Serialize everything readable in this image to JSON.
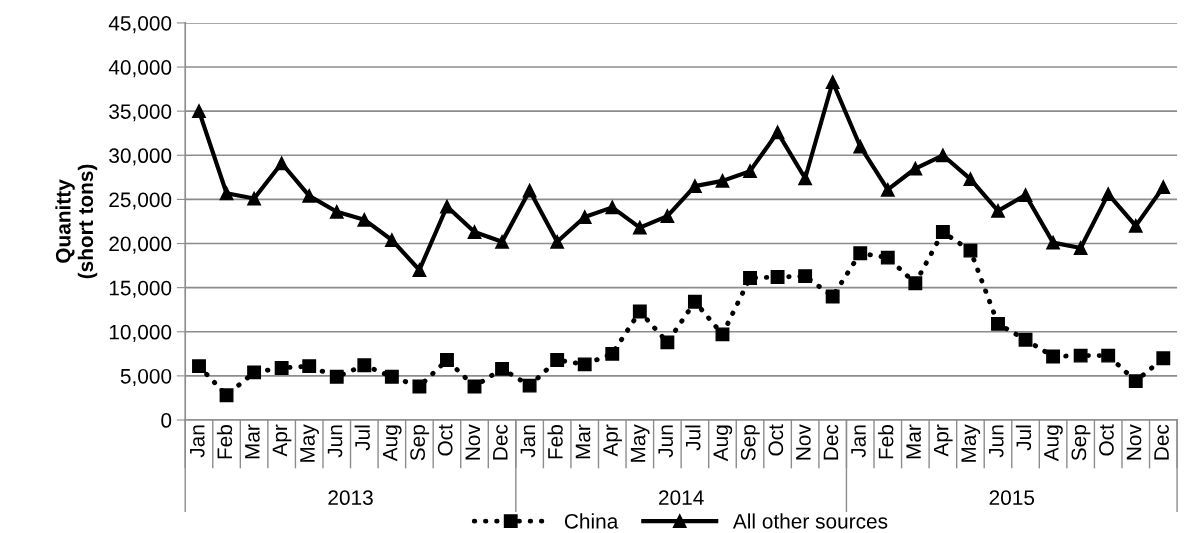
{
  "chart_data": {
    "type": "line",
    "ylabel": "Quanitty\n(short tons)",
    "categories": [
      "Jan",
      "Feb",
      "Mar",
      "Apr",
      "May",
      "Jun",
      "Jul",
      "Aug",
      "Sep",
      "Oct",
      "Nov",
      "Dec",
      "Jan",
      "Feb",
      "Mar",
      "Apr",
      "May",
      "Jun",
      "Jul",
      "Aug",
      "Sep",
      "Oct",
      "Nov",
      "Dec",
      "Jan",
      "Feb",
      "Mar",
      "Apr",
      "May",
      "Jun",
      "Jul",
      "Aug",
      "Sep",
      "Oct",
      "Nov",
      "Dec"
    ],
    "annotations": [
      "2013",
      "2014",
      "2015"
    ],
    "series": [
      {
        "name": "China",
        "color": "#000000",
        "marker": "square",
        "line_style": "dotted",
        "values": [
          6100,
          2800,
          5400,
          5900,
          6100,
          4900,
          6200,
          4900,
          3800,
          6800,
          3800,
          5800,
          3900,
          6800,
          6300,
          7500,
          12300,
          8800,
          13400,
          9700,
          16100,
          16200,
          16300,
          14000,
          18900,
          18400,
          15500,
          21300,
          19200,
          10900,
          9100,
          7200,
          7300,
          7300,
          4400,
          7000
        ]
      },
      {
        "name": "All other sources",
        "color": "#000000",
        "marker": "triangle",
        "line_style": "solid",
        "values": [
          35000,
          25700,
          25100,
          29100,
          25400,
          23600,
          22700,
          20400,
          17000,
          24200,
          21300,
          20200,
          26000,
          20200,
          23000,
          24100,
          21800,
          23100,
          26500,
          27100,
          28200,
          32600,
          27400,
          38300,
          31000,
          26100,
          28500,
          30000,
          27300,
          23700,
          25500,
          20100,
          19500,
          25600,
          22000,
          26400
        ]
      }
    ],
    "ylim": [
      0,
      45000
    ],
    "yticks": [
      {
        "value": 0,
        "label": "0"
      },
      {
        "value": 5000,
        "label": "5,000"
      },
      {
        "value": 10000,
        "label": "10,000"
      },
      {
        "value": 15000,
        "label": "15,000"
      },
      {
        "value": 20000,
        "label": "20,000"
      },
      {
        "value": 25000,
        "label": "25,000"
      },
      {
        "value": 30000,
        "label": "30,000"
      },
      {
        "value": 35000,
        "label": "35,000"
      },
      {
        "value": 40000,
        "label": "40,000"
      },
      {
        "value": 45000,
        "label": "45,000"
      }
    ],
    "grid": "y",
    "legend": "bottom"
  }
}
